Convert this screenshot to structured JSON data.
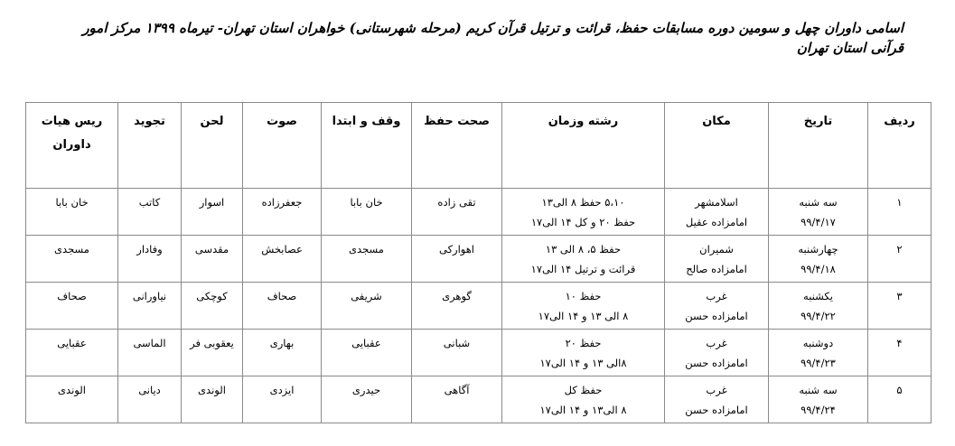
{
  "title": "اسامی داوران چهل و سومین دوره مسابقات حفظ، قرائت و ترتیل قرآن کریم (مرحله شهرستانی) خواهران استان تهران- تیرماه ۱۳۹۹ مرکز امور قرآنی استان تهران",
  "headers": [
    "ردیف",
    "تاریخ",
    "مکان",
    "رشته وزمان",
    "صحت حفظ",
    "وقف و ابتدا",
    "صوت",
    "لحن",
    "تجوید",
    "ریس هیات داوران"
  ],
  "rows": [
    {
      "num": "۱",
      "day": "سه شنبه",
      "date": "۹۹/۴/۱۷",
      "place1": "اسلامشهر",
      "place2": "امامزاده عقیل",
      "time1": "۵،۱۰ حفظ  ۸ الی۱۳",
      "time2": "حفظ ۲۰ و کل ۱۴  الی۱۷",
      "sehat": "تقی زاده",
      "vaghf": "خان بابا",
      "sout": "جعفرزاده",
      "lahn": "اسوار",
      "tajvid": "کاتب",
      "rais": "خان بابا"
    },
    {
      "num": "۲",
      "day": "چهارشنبه",
      "date": "۹۹/۴/۱۸",
      "place1": "شمیران",
      "place2": "امامزاده صالح",
      "time1": "حفظ ۵،   ۸ الی ۱۳",
      "time2": "قرائت و ترتیل ۱۴  الی۱۷",
      "sehat": "اهوارکی",
      "vaghf": "مسجدی",
      "sout": "عصابخش",
      "lahn": "مقدسی",
      "tajvid": "وفادار",
      "rais": "مسجدی"
    },
    {
      "num": "۳",
      "day": "یکشنبه",
      "date": "۹۹/۴/۲۲",
      "place1": "غرب",
      "place2": "امامزاده حسن",
      "time1": "حفظ ۱۰",
      "time2": "۸ الی ۱۳  و  ۱۴ الی۱۷",
      "sehat": "گوهری",
      "vaghf": "شریفی",
      "sout": "صحاف",
      "lahn": "کوچکی",
      "tajvid": "نیاورانی",
      "rais": "صحاف"
    },
    {
      "num": "۴",
      "day": "دوشنبه",
      "date": "۹۹/۴/۲۳",
      "place1": "غرب",
      "place2": "امامزاده حسن",
      "time1": "حفظ ۲۰",
      "time2": "۸الی ۱۳  و  ۱۴ الی۱۷",
      "sehat": "شبانی",
      "vaghf": "عقبایی",
      "sout": "بهاری",
      "lahn": "یعقوبی فر",
      "tajvid": "الماسی",
      "rais": "عقبایی"
    },
    {
      "num": "۵",
      "day": "سه شنبه",
      "date": "۹۹/۴/۲۴",
      "place1": "غرب",
      "place2": "امامزاده حسن",
      "time1": "حفظ کل",
      "time2": "۸ الی۱۳ و ۱۴ الی۱۷",
      "sehat": "آگاهی",
      "vaghf": "حیدری",
      "sout": "ایزدی",
      "lahn": "الوندی",
      "tajvid": "دیانی",
      "rais": "الوندی"
    }
  ]
}
